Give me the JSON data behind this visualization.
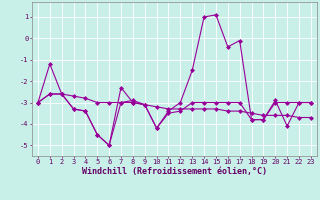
{
  "title": "",
  "xlabel": "Windchill (Refroidissement éolien,°C)",
  "ylabel": "",
  "bg_color": "#c8f0e8",
  "line_color": "#990099",
  "grid_color": "#ffffff",
  "xlim": [
    -0.5,
    23.5
  ],
  "ylim": [
    -5.5,
    1.7
  ],
  "yticks": [
    -5,
    -4,
    -3,
    -2,
    -1,
    0,
    1
  ],
  "xticks": [
    0,
    1,
    2,
    3,
    4,
    5,
    6,
    7,
    8,
    9,
    10,
    11,
    12,
    13,
    14,
    15,
    16,
    17,
    18,
    19,
    20,
    21,
    22,
    23
  ],
  "series": [
    [
      -3.0,
      -1.2,
      -2.6,
      -3.3,
      -3.4,
      -4.5,
      -5.0,
      -2.3,
      -3.0,
      -3.1,
      -4.2,
      -3.4,
      -3.0,
      -1.5,
      1.0,
      1.1,
      -0.4,
      -0.1,
      -3.8,
      -3.8,
      -2.9,
      -4.1,
      -3.0,
      -3.0
    ],
    [
      -3.0,
      -2.6,
      -2.6,
      -3.3,
      -3.4,
      -4.5,
      -5.0,
      -3.0,
      -2.9,
      -3.1,
      -4.2,
      -3.5,
      -3.4,
      -3.0,
      -3.0,
      -3.0,
      -3.0,
      -3.0,
      -3.8,
      -3.8,
      -3.0,
      -3.0,
      -3.0,
      -3.0
    ],
    [
      -3.0,
      -2.6,
      -2.6,
      -2.7,
      -2.8,
      -3.0,
      -3.0,
      -3.0,
      -3.0,
      -3.1,
      -3.2,
      -3.3,
      -3.3,
      -3.3,
      -3.3,
      -3.3,
      -3.4,
      -3.4,
      -3.5,
      -3.6,
      -3.6,
      -3.6,
      -3.7,
      -3.7
    ]
  ],
  "marker": "D",
  "markersize": 2.0,
  "linewidth": 0.8,
  "tick_fontsize": 5.0,
  "label_fontsize": 6.0,
  "tick_color": "#660066",
  "label_color": "#660066"
}
